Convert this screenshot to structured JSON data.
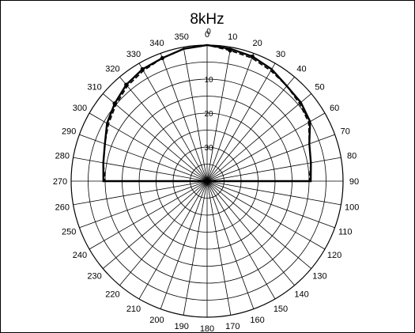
{
  "chart_data": {
    "type": "polar",
    "title": "8kHz",
    "theta_direction": "clockwise",
    "theta_zero": "top",
    "angular_ticks": [
      "0",
      "10",
      "20",
      "30",
      "40",
      "50",
      "60",
      "70",
      "80",
      "90",
      "100",
      "110",
      "120",
      "130",
      "140",
      "150",
      "160",
      "170",
      "180",
      "190",
      "200",
      "210",
      "220",
      "230",
      "240",
      "250",
      "260",
      "270",
      "280",
      "290",
      "300",
      "310",
      "320",
      "330",
      "340",
      "350"
    ],
    "radial_ticks": [
      "0",
      "10",
      "20",
      "30"
    ],
    "radial_range": [
      0,
      40
    ],
    "radial_direction": "attenuation_inward",
    "series": [
      {
        "name": "",
        "style": "solid",
        "color": "#000000",
        "theta": [
          0,
          10,
          20,
          30,
          40,
          50,
          60,
          70,
          80,
          90,
          270,
          280,
          290,
          300,
          310,
          320,
          330,
          340,
          350
        ],
        "values": [
          0,
          -0.5,
          -1,
          -2,
          -3.5,
          -4,
          -5,
          -8,
          -9,
          -9.5,
          -9.5,
          -9,
          -8,
          -6,
          -4.5,
          -3,
          -2,
          -1.5,
          -0.5
        ]
      },
      {
        "name": "",
        "style": "dashed",
        "color": "#000000",
        "theta": [
          0,
          10,
          20,
          30,
          40,
          50,
          60,
          70,
          80,
          90,
          270,
          280,
          290,
          300,
          310,
          320,
          330,
          340,
          350
        ],
        "values": [
          0,
          -1,
          -1.5,
          -2.5,
          -3.5,
          -4.5,
          -5.5,
          -8,
          -9,
          -10,
          -10,
          -9,
          -8,
          -6.5,
          -5,
          -3.5,
          -2.5,
          -1.5,
          -0.5
        ]
      }
    ],
    "markers": {
      "theta": [
        10,
        20,
        330,
        320,
        310,
        340
      ],
      "values": [
        -1,
        -1,
        -2,
        -3,
        -4.5,
        -1.5
      ]
    },
    "grid": true
  }
}
